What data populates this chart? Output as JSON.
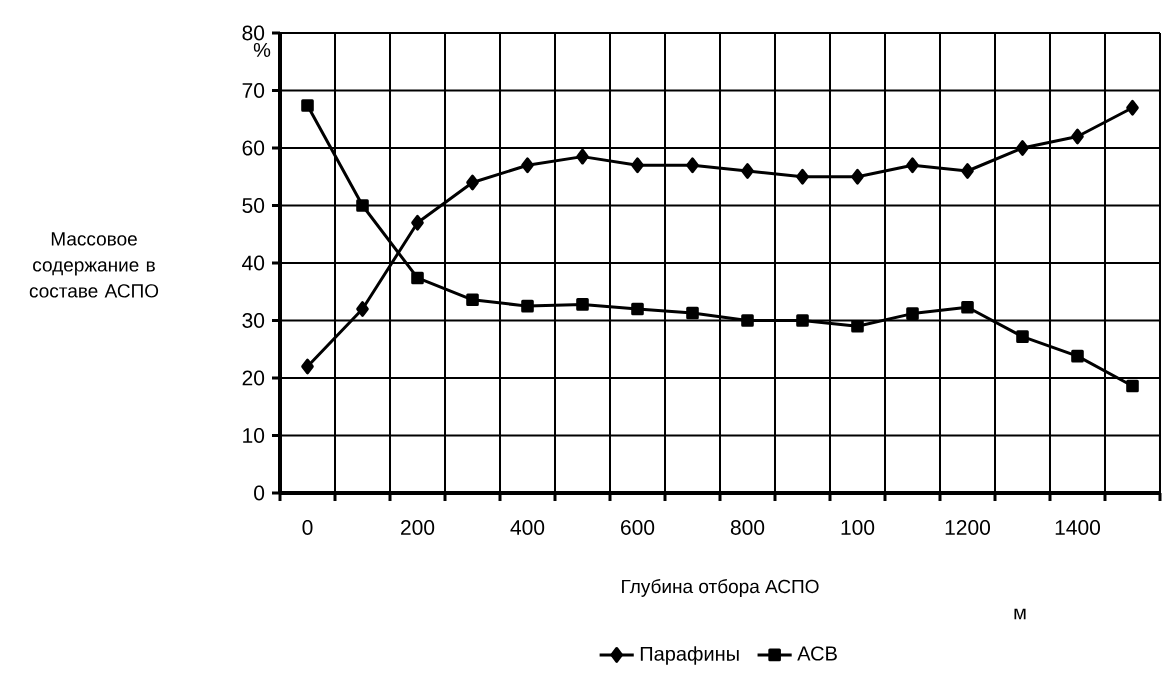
{
  "chart_data": {
    "type": "line",
    "xlabel": "Глубина отбора АСПО",
    "ylabel": "Массовое содержание в составе АСПО",
    "annotations": [
      "%",
      "м"
    ],
    "categories": [
      "0",
      null,
      "200",
      null,
      "400",
      null,
      "600",
      null,
      "800",
      null,
      "100",
      null,
      "1200",
      null,
      "1400",
      null
    ],
    "series": [
      {
        "name": "Парафины",
        "color": "#000000",
        "marker": "diamond",
        "values": [
          22,
          32,
          47,
          54,
          57,
          58.5,
          57,
          57,
          56,
          55,
          55,
          57,
          56,
          60,
          62,
          67
        ]
      },
      {
        "name": "АСВ",
        "color": "#000000",
        "marker": "square",
        "values": [
          67.4,
          50,
          37.4,
          33.6,
          32.5,
          32.8,
          32,
          31.3,
          30,
          30,
          29,
          31.2,
          32.3,
          27.2,
          23.8,
          18.6
        ]
      }
    ],
    "ylim": [
      0,
      80
    ],
    "yticks": [
      0,
      10,
      20,
      30,
      40,
      50,
      60,
      70,
      80
    ],
    "grid": true,
    "legend": "bottom",
    "line_style": "solid"
  }
}
